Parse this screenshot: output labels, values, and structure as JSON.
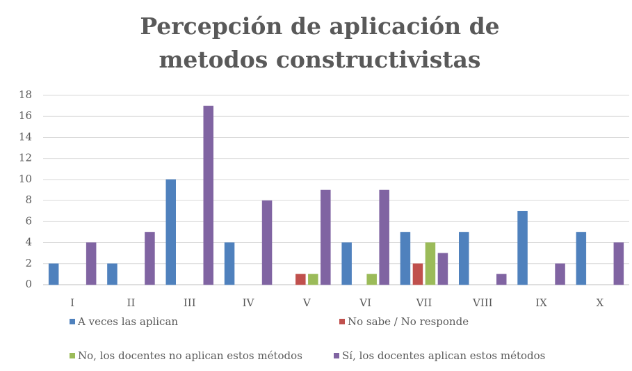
{
  "chart_data": {
    "type": "bar",
    "title": "Percepción de aplicación de metodos constructivistas",
    "categories": [
      "I",
      "II",
      "III",
      "IV",
      "V",
      "VI",
      "VII",
      "VIII",
      "IX",
      "X"
    ],
    "series": [
      {
        "name": "A veces las aplican",
        "color": "#4f81bd",
        "values": [
          2,
          2,
          10,
          4,
          0,
          4,
          5,
          5,
          7,
          5
        ]
      },
      {
        "name": "No sabe / No responde",
        "color": "#c0504d",
        "values": [
          0,
          0,
          0,
          0,
          1,
          0,
          2,
          0,
          0,
          0
        ]
      },
      {
        "name": "No, los docentes no aplican estos métodos",
        "color": "#9bbb59",
        "values": [
          0,
          0,
          0,
          0,
          1,
          1,
          4,
          0,
          0,
          0
        ]
      },
      {
        "name": "Sí, los docentes aplican estos métodos",
        "color": "#8064a2",
        "values": [
          4,
          5,
          17,
          8,
          9,
          9,
          3,
          1,
          2,
          4
        ]
      }
    ],
    "ylim": [
      0,
      18
    ],
    "yticks": [
      0,
      2,
      4,
      6,
      8,
      10,
      12,
      14,
      16,
      18
    ],
    "grid": true,
    "legend": "bottom"
  }
}
